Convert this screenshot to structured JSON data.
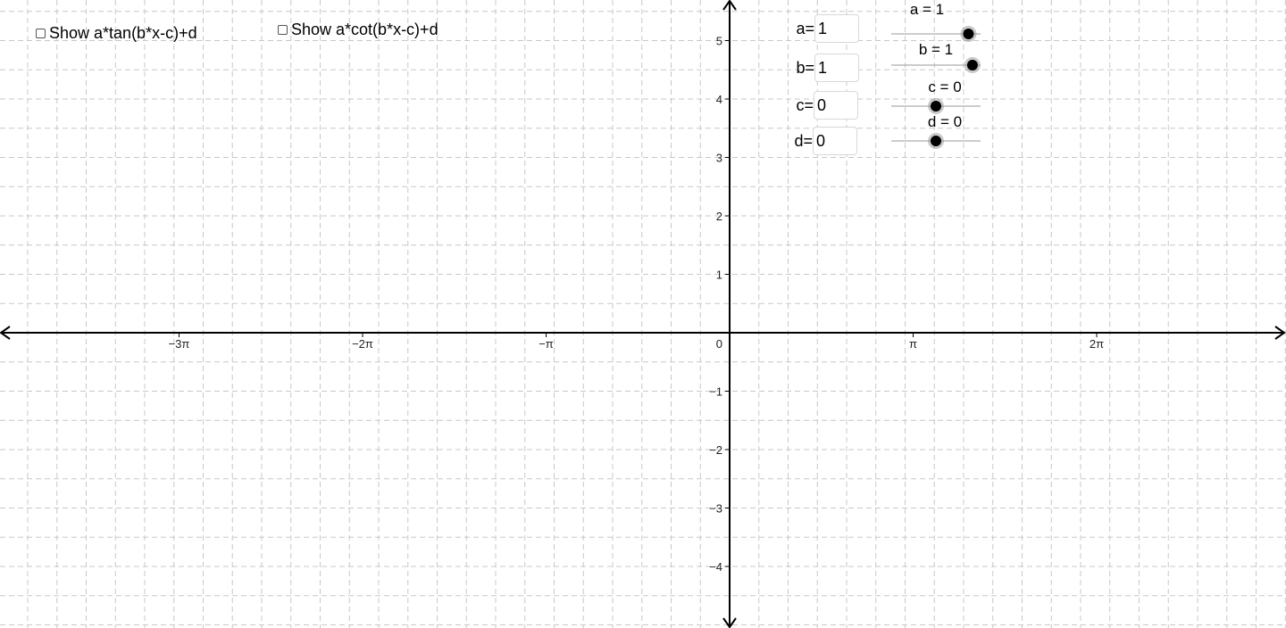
{
  "checkboxes": [
    {
      "label": "Show a*tan(b*x-c)+d",
      "checked": false
    },
    {
      "label": "Show a*cot(b*x-c)+d",
      "checked": false
    }
  ],
  "params": [
    {
      "label": "a=",
      "value": "1"
    },
    {
      "label": "b=",
      "value": "1"
    },
    {
      "label": "c=",
      "value": "0"
    },
    {
      "label": "d=",
      "value": "0"
    }
  ],
  "sliders": [
    {
      "name": "a",
      "caption": "a = 1",
      "value": 1
    },
    {
      "name": "b",
      "caption": "b = 1",
      "value": 1
    },
    {
      "name": "c",
      "caption": "c = 0",
      "value": 0
    },
    {
      "name": "d",
      "caption": "d = 0",
      "value": 0
    }
  ],
  "axes": {
    "x_ticks": [
      {
        "label": "−3π",
        "value": -3
      },
      {
        "label": "−2π",
        "value": -2
      },
      {
        "label": "−π",
        "value": -1
      },
      {
        "label": "π",
        "value": 1
      },
      {
        "label": "2π",
        "value": 2
      }
    ],
    "origin_label": "0",
    "y_ticks": [
      {
        "label": "5",
        "value": 5
      },
      {
        "label": "4",
        "value": 4
      },
      {
        "label": "3",
        "value": 3
      },
      {
        "label": "2",
        "value": 2
      },
      {
        "label": "1",
        "value": 1
      },
      {
        "label": "−1",
        "value": -1
      },
      {
        "label": "−2",
        "value": -2
      },
      {
        "label": "−3",
        "value": -3
      },
      {
        "label": "−4",
        "value": -4
      }
    ]
  },
  "colors": {
    "grid": "#c8c8c8",
    "axis": "#000000",
    "slider_track": "#999999",
    "slider_point": "#000000",
    "slider_halo": "#8a8a8a"
  }
}
